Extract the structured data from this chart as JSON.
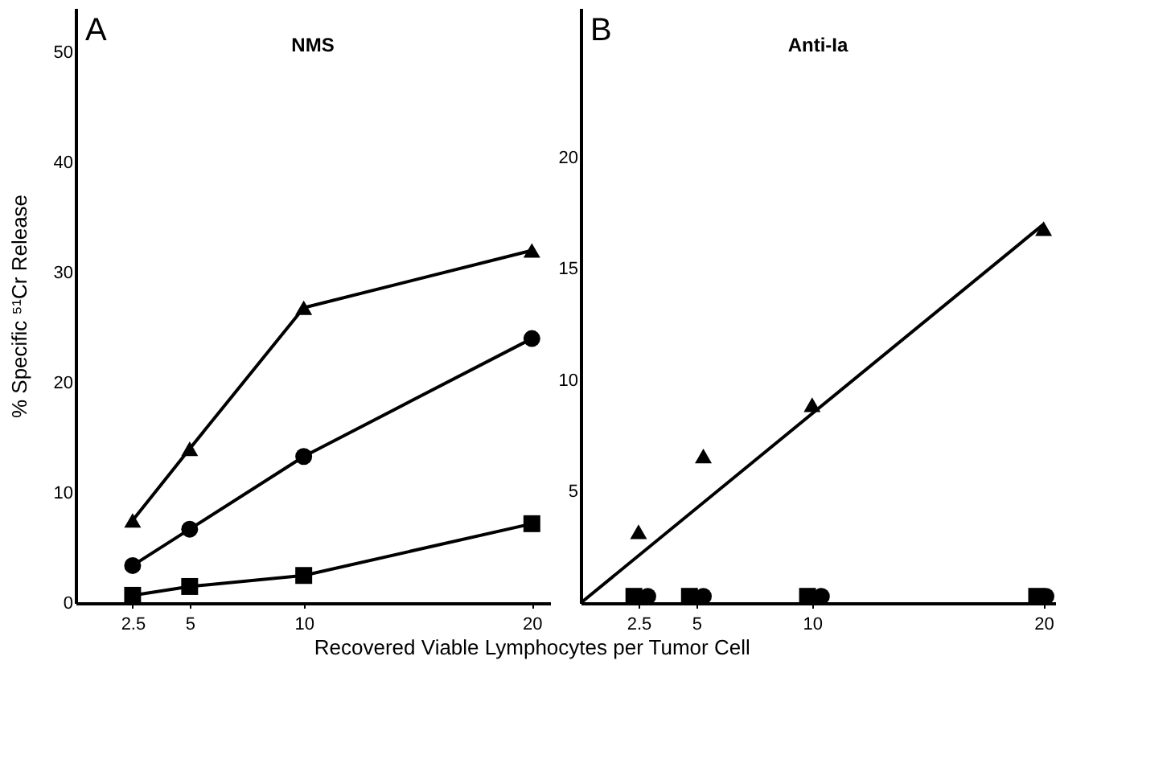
{
  "chart_data": [
    {
      "type": "line",
      "title": "NMS",
      "xlabel": "Recovered Viable Lymphocytes per Tumor Cell",
      "ylabel": "% Specific ⁵¹Cr Release",
      "annotations": [
        "A"
      ],
      "xlim": [
        0,
        20.8
      ],
      "xticks": [
        2.5,
        5,
        10,
        20
      ],
      "ylim": [
        0,
        54
      ],
      "yticks": [
        0,
        10,
        20,
        30,
        40,
        50
      ],
      "grid": false,
      "legend": false,
      "line_style": "solid",
      "series": [
        {
          "color": "#000000",
          "marker": "triangle",
          "x": [
            2.5,
            5,
            10,
            20
          ],
          "values": [
            7.5,
            14,
            26.8,
            32
          ]
        },
        {
          "color": "#000000",
          "marker": "circle",
          "x": [
            2.5,
            5,
            10,
            20
          ],
          "values": [
            3.4,
            6.7,
            13.3,
            24
          ]
        },
        {
          "color": "#000000",
          "marker": "square",
          "x": [
            2.5,
            5,
            10,
            20
          ],
          "values": [
            0.7,
            1.5,
            2.5,
            7.2
          ]
        }
      ]
    },
    {
      "type": "scatter",
      "title": "Anti-Ia",
      "annotations": [
        "B"
      ],
      "xlim": [
        0,
        20.5
      ],
      "xticks": [
        2.5,
        5,
        10,
        20
      ],
      "ylim": [
        0,
        26.7
      ],
      "yticks": [
        5,
        10,
        15,
        20
      ],
      "grid": false,
      "legend": false,
      "line_style": "solid",
      "series": [
        {
          "type": "line",
          "color": "#000000",
          "marker": "none",
          "x": [
            0,
            20
          ],
          "values": [
            0,
            17
          ]
        },
        {
          "color": "#000000",
          "marker": "triangle",
          "x": [
            2.5,
            5.3,
            10,
            20
          ],
          "values": [
            3.2,
            6.6,
            8.9,
            16.8
          ]
        },
        {
          "color": "#000000",
          "marker": "square",
          "x": [
            2.3,
            4.7,
            9.8,
            19.7
          ],
          "values": [
            0.3,
            0.3,
            0.3,
            0.3
          ]
        },
        {
          "color": "#000000",
          "marker": "circle",
          "x": [
            2.9,
            5.3,
            10.4,
            20.1
          ],
          "values": [
            0.3,
            0.3,
            0.3,
            0.3
          ]
        }
      ]
    }
  ]
}
